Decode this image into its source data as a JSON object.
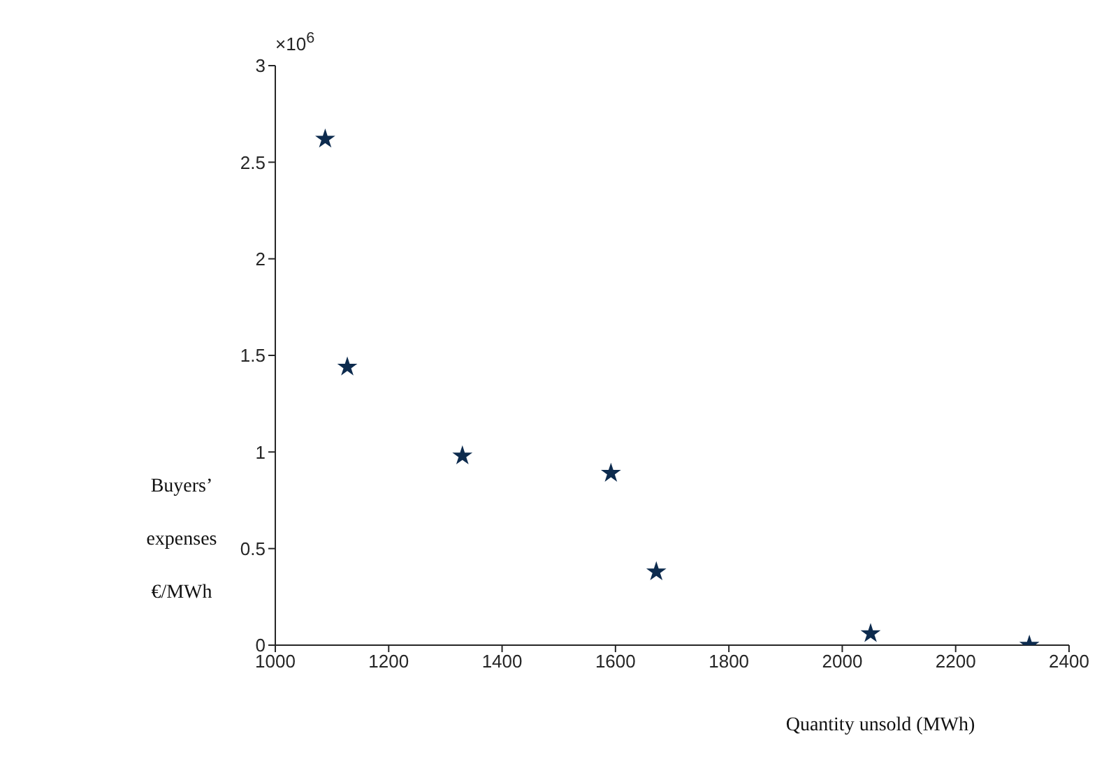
{
  "chart_data": {
    "type": "scatter",
    "xlabel": "Quantity unsold (MWh)",
    "ylabel": "Buyers’ expenses €/MWh",
    "annotations": [
      "×10$^{6}$"
    ],
    "x": [
      1088,
      1127,
      1330,
      1592,
      1672,
      2050,
      2330
    ],
    "series": [
      {
        "color": "#0d2b4e",
        "values": [
          2.62,
          1.44,
          0.98,
          0.89,
          0.38,
          0.06,
          0
        ]
      }
    ],
    "xlim": [
      1000,
      2400
    ],
    "xticks": [
      1000,
      1200,
      1400,
      1600,
      1800,
      2000,
      2200,
      2400
    ],
    "ylim": [
      0,
      3
    ],
    "yticks": [
      0,
      0.5,
      1,
      1.5,
      2,
      2.5,
      3
    ],
    "grid": false,
    "legend": false,
    "marker": "star"
  }
}
